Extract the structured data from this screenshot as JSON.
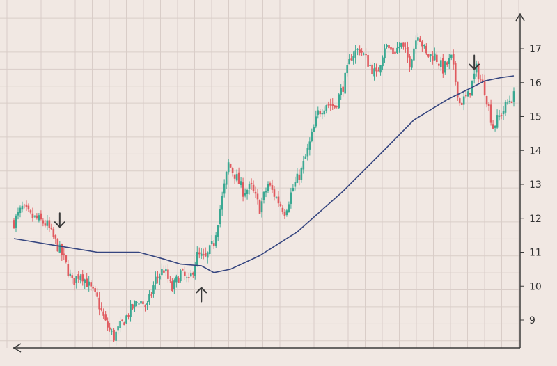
{
  "colors": {
    "background": "#f1e8e3",
    "grid": "#d9cdc8",
    "axis": "#3a3a3a",
    "up_candle": "#3aa892",
    "down_candle": "#e05a5f",
    "moving_average": "#35457f",
    "arrow": "#3a3a3a"
  },
  "chart_data": {
    "type": "candlestick",
    "title": "",
    "xlabel": "",
    "ylabel": "",
    "ylim": [
      8.2,
      17.9
    ],
    "y_ticks": [
      9,
      10,
      11,
      12,
      13,
      14,
      15,
      16,
      17
    ],
    "y_axis_side": "right",
    "grid": true,
    "x_index_range": [
      0,
      240
    ],
    "price_anchors": [
      [
        0,
        11.9
      ],
      [
        4,
        12.3
      ],
      [
        8,
        12.05
      ],
      [
        12,
        11.95
      ],
      [
        16,
        11.8
      ],
      [
        20,
        11.3
      ],
      [
        24,
        10.8
      ],
      [
        28,
        10.1
      ],
      [
        32,
        10.4
      ],
      [
        36,
        10.0
      ],
      [
        40,
        9.6
      ],
      [
        44,
        8.9
      ],
      [
        48,
        8.5
      ],
      [
        52,
        8.9
      ],
      [
        56,
        9.3
      ],
      [
        60,
        9.6
      ],
      [
        64,
        9.4
      ],
      [
        68,
        10.2
      ],
      [
        72,
        10.5
      ],
      [
        76,
        9.9
      ],
      [
        80,
        10.4
      ],
      [
        84,
        10.1
      ],
      [
        88,
        10.9
      ],
      [
        92,
        10.8
      ],
      [
        96,
        11.3
      ],
      [
        100,
        12.6
      ],
      [
        103,
        13.6
      ],
      [
        106,
        13.3
      ],
      [
        110,
        12.8
      ],
      [
        114,
        12.9
      ],
      [
        118,
        12.3
      ],
      [
        122,
        13.0
      ],
      [
        126,
        12.6
      ],
      [
        130,
        12.2
      ],
      [
        134,
        12.9
      ],
      [
        138,
        13.4
      ],
      [
        142,
        14.2
      ],
      [
        146,
        15.1
      ],
      [
        150,
        15.4
      ],
      [
        154,
        15.3
      ],
      [
        158,
        15.9
      ],
      [
        162,
        16.8
      ],
      [
        166,
        17.0
      ],
      [
        170,
        16.6
      ],
      [
        174,
        16.2
      ],
      [
        178,
        17.1
      ],
      [
        182,
        16.9
      ],
      [
        186,
        17.1
      ],
      [
        190,
        16.6
      ],
      [
        194,
        17.5
      ],
      [
        198,
        16.8
      ],
      [
        202,
        16.8
      ],
      [
        206,
        16.4
      ],
      [
        210,
        16.7
      ],
      [
        214,
        15.4
      ],
      [
        218,
        15.6
      ],
      [
        222,
        16.4
      ],
      [
        226,
        15.8
      ],
      [
        230,
        14.7
      ],
      [
        234,
        15.1
      ],
      [
        238,
        15.5
      ],
      [
        240,
        15.6
      ]
    ],
    "moving_average": {
      "x": [
        0,
        20,
        40,
        60,
        72,
        80,
        90,
        96,
        104,
        118,
        136,
        158,
        176,
        192,
        208,
        218,
        226,
        234,
        240
      ],
      "y": [
        11.4,
        11.2,
        11.0,
        11.0,
        10.8,
        10.65,
        10.6,
        10.4,
        10.5,
        10.9,
        11.6,
        12.8,
        13.9,
        14.9,
        15.5,
        15.8,
        16.05,
        16.15,
        16.2
      ]
    },
    "annotations": [
      {
        "type": "arrow-down",
        "x": 22,
        "y": 11.95
      },
      {
        "type": "arrow-up",
        "x": 90,
        "y": 9.75
      },
      {
        "type": "arrow-down",
        "x": 221,
        "y": 16.6
      }
    ]
  }
}
